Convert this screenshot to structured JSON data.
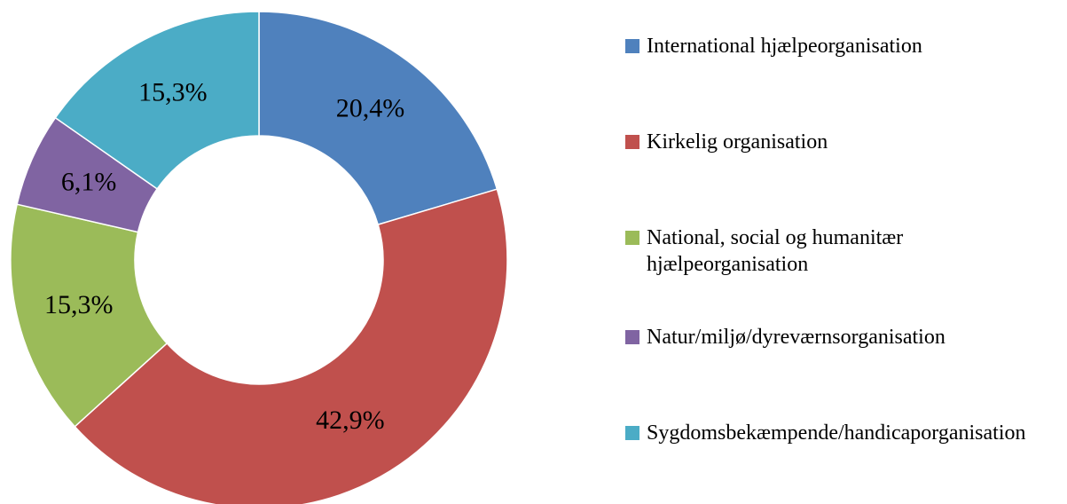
{
  "chart_data": {
    "type": "donut",
    "categories": [
      "International hjælpeorganisation",
      "Kirkelig organisation",
      "National, social og humanitær hjælpeorganisation",
      "Natur/miljø/dyreværnsorganisation",
      "Sygdomsbekæmpende/handicaporganisation"
    ],
    "values": [
      20.4,
      42.9,
      15.3,
      6.1,
      15.3
    ],
    "value_labels": [
      "20,4%",
      "42,9%",
      "15,3%",
      "6,1%",
      "15,3%"
    ],
    "colors": [
      "#4f81bd",
      "#c0504d",
      "#9bbb59",
      "#8064a2",
      "#4bacc6"
    ],
    "legend": "right"
  }
}
